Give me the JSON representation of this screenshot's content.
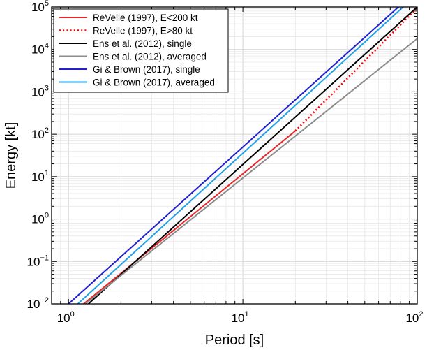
{
  "chart_data": {
    "type": "line",
    "title": "",
    "xlabel": "Period [s]",
    "ylabel": "Energy [kt]",
    "xscale": "log",
    "yscale": "log",
    "xlim": [
      0.8,
      100
    ],
    "ylim": [
      0.01,
      100000
    ],
    "grid": true,
    "legend_position": "top-left",
    "x_ticks": [
      {
        "value": 1,
        "base": "10",
        "exp": "0"
      },
      {
        "value": 10,
        "base": "10",
        "exp": "1"
      },
      {
        "value": 100,
        "base": "10",
        "exp": "2"
      }
    ],
    "y_ticks": [
      {
        "value": 0.01,
        "base": "10",
        "exp": "−2"
      },
      {
        "value": 0.1,
        "base": "10",
        "exp": "−1"
      },
      {
        "value": 1,
        "base": "10",
        "exp": "0"
      },
      {
        "value": 10,
        "base": "10",
        "exp": "1"
      },
      {
        "value": 100,
        "base": "10",
        "exp": "2"
      },
      {
        "value": 1000,
        "base": "10",
        "exp": "3"
      },
      {
        "value": 10000,
        "base": "10",
        "exp": "4"
      },
      {
        "value": 100000,
        "base": "10",
        "exp": "5"
      }
    ],
    "series": [
      {
        "name": "ReVelle (1997), E<200 kt",
        "color": "#e8262a",
        "dash": "solid",
        "x": [
          1.22,
          20.0
        ],
        "y": [
          0.01,
          120
        ]
      },
      {
        "name": "ReVelle (1997), E>80 kt",
        "color": "#ff0000",
        "dash": "dotted",
        "x": [
          20.0,
          100.0
        ],
        "y": [
          120,
          95000
        ]
      },
      {
        "name": "Ens et al. (2012), single",
        "color": "#000000",
        "dash": "solid",
        "x": [
          1.3,
          100.0
        ],
        "y": [
          0.01,
          100000
        ]
      },
      {
        "name": "Ens et al. (2012), averaged",
        "color": "#8c8c8c",
        "dash": "solid",
        "x": [
          1.25,
          100.0
        ],
        "y": [
          0.01,
          18000
        ]
      },
      {
        "name": "Gi & Brown (2017), single",
        "color": "#2020d0",
        "dash": "solid",
        "x": [
          1.0,
          78.0
        ],
        "y": [
          0.01,
          100000
        ]
      },
      {
        "name": "Gi & Brown (2017), averaged",
        "color": "#1fa0e8",
        "dash": "solid",
        "x": [
          1.13,
          83.0
        ],
        "y": [
          0.01,
          100000
        ]
      }
    ]
  }
}
